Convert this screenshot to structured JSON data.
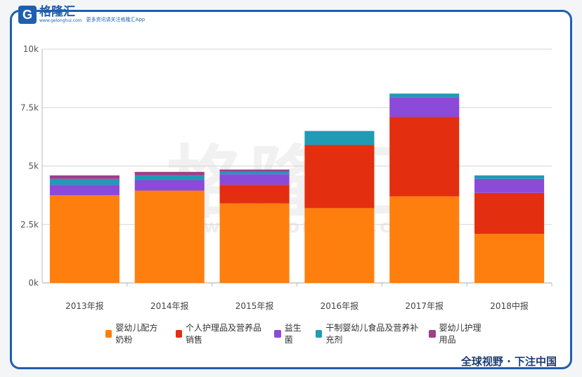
{
  "brand": {
    "logo_letter": "G",
    "name": "格隆汇",
    "domain": "www.gelonghui.com",
    "slogan": "更多资讯请关注格隆汇App",
    "watermark_name": "格隆汇",
    "watermark_domain": "www.gelonghui.com",
    "accent_color": "#1f5fae"
  },
  "footer": {
    "text": "全球视野 · 下注中国"
  },
  "chart_data": {
    "type": "bar",
    "stacked": true,
    "title": "",
    "xlabel": "",
    "ylabel": "",
    "ylim": [
      0,
      10000
    ],
    "yticks": [
      0,
      2500,
      5000,
      7500,
      10000
    ],
    "ytick_labels": [
      "0k",
      "2.5k",
      "5k",
      "7.5k",
      "10k"
    ],
    "grid": true,
    "legend_position": "bottom",
    "categories": [
      "2013年报",
      "2014年报",
      "2015年报",
      "2016年报",
      "2017年报",
      "2018中报"
    ],
    "series": [
      {
        "name": "婴幼儿配方奶粉",
        "color": "#ff7f0e",
        "values": [
          3750,
          3950,
          3400,
          3200,
          3700,
          2100
        ]
      },
      {
        "name": "个人护理品及营养品销售",
        "color": "#e32f0f",
        "values": [
          0,
          0,
          800,
          2700,
          3400,
          1750
        ]
      },
      {
        "name": "益生菌",
        "color": "#8b4ad8",
        "values": [
          450,
          450,
          450,
          0,
          850,
          600
        ]
      },
      {
        "name": "干制婴幼儿食品及营养补充剂",
        "color": "#1f9bb5",
        "values": [
          250,
          200,
          100,
          600,
          150,
          150
        ]
      },
      {
        "name": "婴幼儿护理用品",
        "color": "#9c3f8c",
        "values": [
          150,
          150,
          100,
          0,
          0,
          0
        ]
      }
    ]
  }
}
